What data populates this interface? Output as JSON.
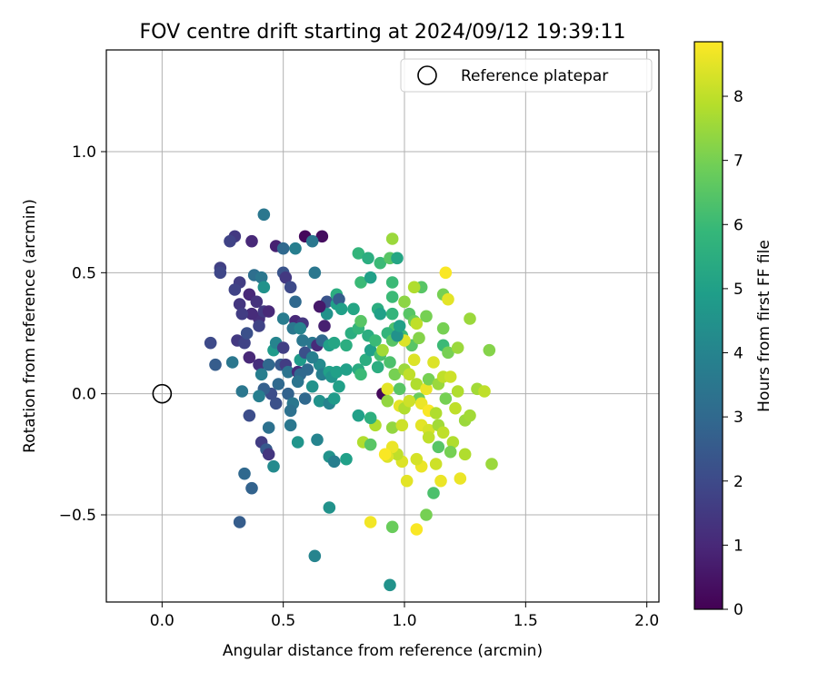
{
  "chart_data": {
    "type": "scatter",
    "title": "FOV centre drift starting at 2024/09/12 19:39:11",
    "xlabel": "Angular distance from reference (arcmin)",
    "ylabel": "Rotation from reference (arcmin)",
    "xlim": [
      -0.23,
      2.05
    ],
    "ylim": [
      -0.86,
      1.42
    ],
    "x_ticks": [
      "0.0",
      "0.5",
      "1.0",
      "1.5",
      "2.0"
    ],
    "x_tick_values": [
      0,
      0.5,
      1,
      1.5,
      2
    ],
    "y_ticks": [
      "−0.5",
      "0.0",
      "0.5",
      "1.0"
    ],
    "y_tick_values": [
      -0.5,
      0,
      0.5,
      1
    ],
    "grid": true,
    "legend": {
      "placement": "top-right",
      "entries": [
        "Reference platepar"
      ]
    },
    "reference_point": {
      "x": 0,
      "y": 0
    },
    "colorbar": {
      "label": "Hours from first FF file",
      "min": 0,
      "max": 8.85,
      "ticks": [
        "0",
        "1",
        "2",
        "3",
        "4",
        "5",
        "6",
        "7",
        "8"
      ],
      "tick_values": [
        0,
        1,
        2,
        3,
        4,
        5,
        6,
        7,
        8
      ],
      "colormap": [
        "#440154",
        "#482878",
        "#3e4989",
        "#31688e",
        "#26828e",
        "#1f9e89",
        "#35b779",
        "#6ece58",
        "#b5de2b",
        "#fde725"
      ]
    },
    "points": [
      {
        "x": 0.42,
        "y": 0.74,
        "h": 3.5
      },
      {
        "x": 0.3,
        "y": 0.65,
        "h": 1.5
      },
      {
        "x": 0.28,
        "y": 0.63,
        "h": 1.8
      },
      {
        "x": 0.37,
        "y": 0.63,
        "h": 1.0
      },
      {
        "x": 0.47,
        "y": 0.61,
        "h": 0.8
      },
      {
        "x": 0.5,
        "y": 0.6,
        "h": 3.0
      },
      {
        "x": 0.55,
        "y": 0.6,
        "h": 3.8
      },
      {
        "x": 0.59,
        "y": 0.65,
        "h": 0.2
      },
      {
        "x": 0.66,
        "y": 0.65,
        "h": 0.3
      },
      {
        "x": 0.62,
        "y": 0.63,
        "h": 3.5
      },
      {
        "x": 0.24,
        "y": 0.52,
        "h": 1.7
      },
      {
        "x": 0.24,
        "y": 0.5,
        "h": 1.9
      },
      {
        "x": 0.38,
        "y": 0.49,
        "h": 3.2
      },
      {
        "x": 0.41,
        "y": 0.48,
        "h": 3.5
      },
      {
        "x": 0.5,
        "y": 0.5,
        "h": 2.3
      },
      {
        "x": 0.51,
        "y": 0.48,
        "h": 1.5
      },
      {
        "x": 0.63,
        "y": 0.5,
        "h": 3.5
      },
      {
        "x": 0.32,
        "y": 0.46,
        "h": 1.6
      },
      {
        "x": 0.3,
        "y": 0.43,
        "h": 1.8
      },
      {
        "x": 0.36,
        "y": 0.41,
        "h": 1.0
      },
      {
        "x": 0.42,
        "y": 0.44,
        "h": 4.5
      },
      {
        "x": 0.53,
        "y": 0.44,
        "h": 2.0
      },
      {
        "x": 0.55,
        "y": 0.38,
        "h": 3.0
      },
      {
        "x": 0.39,
        "y": 0.38,
        "h": 1.3
      },
      {
        "x": 0.32,
        "y": 0.37,
        "h": 1.4
      },
      {
        "x": 0.4,
        "y": 0.31,
        "h": 1.2
      },
      {
        "x": 0.42,
        "y": 0.34,
        "h": 1.5
      },
      {
        "x": 0.44,
        "y": 0.34,
        "h": 1.0
      },
      {
        "x": 0.37,
        "y": 0.33,
        "h": 1.1
      },
      {
        "x": 0.33,
        "y": 0.33,
        "h": 1.6
      },
      {
        "x": 0.4,
        "y": 0.28,
        "h": 1.8
      },
      {
        "x": 0.5,
        "y": 0.31,
        "h": 3.7
      },
      {
        "x": 0.55,
        "y": 0.3,
        "h": 1.0
      },
      {
        "x": 0.58,
        "y": 0.29,
        "h": 1.4
      },
      {
        "x": 0.54,
        "y": 0.27,
        "h": 3.5
      },
      {
        "x": 0.57,
        "y": 0.27,
        "h": 4.0
      },
      {
        "x": 0.67,
        "y": 0.28,
        "h": 0.8
      },
      {
        "x": 0.68,
        "y": 0.33,
        "h": 4.5
      },
      {
        "x": 0.68,
        "y": 0.38,
        "h": 2.3
      },
      {
        "x": 0.65,
        "y": 0.36,
        "h": 0.6
      },
      {
        "x": 0.72,
        "y": 0.41,
        "h": 5.5
      },
      {
        "x": 0.72,
        "y": 0.37,
        "h": 5.0
      },
      {
        "x": 0.73,
        "y": 0.39,
        "h": 2.6
      },
      {
        "x": 0.74,
        "y": 0.35,
        "h": 5.0
      },
      {
        "x": 0.79,
        "y": 0.35,
        "h": 5.2
      },
      {
        "x": 0.81,
        "y": 0.58,
        "h": 5.8
      },
      {
        "x": 0.85,
        "y": 0.56,
        "h": 5.5
      },
      {
        "x": 0.9,
        "y": 0.54,
        "h": 6.0
      },
      {
        "x": 0.94,
        "y": 0.56,
        "h": 6.5
      },
      {
        "x": 0.97,
        "y": 0.56,
        "h": 5.2
      },
      {
        "x": 0.95,
        "y": 0.64,
        "h": 7.5
      },
      {
        "x": 0.82,
        "y": 0.46,
        "h": 6.0
      },
      {
        "x": 0.86,
        "y": 0.48,
        "h": 5.0
      },
      {
        "x": 0.95,
        "y": 0.46,
        "h": 6.0
      },
      {
        "x": 1.07,
        "y": 0.44,
        "h": 6.5
      },
      {
        "x": 1.04,
        "y": 0.44,
        "h": 7.8
      },
      {
        "x": 1.17,
        "y": 0.5,
        "h": 8.8
      },
      {
        "x": 1.16,
        "y": 0.41,
        "h": 7.0
      },
      {
        "x": 1.18,
        "y": 0.39,
        "h": 8.5
      },
      {
        "x": 0.95,
        "y": 0.4,
        "h": 6.0
      },
      {
        "x": 1.0,
        "y": 0.38,
        "h": 7.3
      },
      {
        "x": 1.02,
        "y": 0.33,
        "h": 6.5
      },
      {
        "x": 0.89,
        "y": 0.35,
        "h": 5.5
      },
      {
        "x": 0.9,
        "y": 0.33,
        "h": 5.0
      },
      {
        "x": 0.95,
        "y": 0.33,
        "h": 5.8
      },
      {
        "x": 1.04,
        "y": 0.3,
        "h": 6.8
      },
      {
        "x": 1.05,
        "y": 0.29,
        "h": 8.0
      },
      {
        "x": 1.09,
        "y": 0.32,
        "h": 7.0
      },
      {
        "x": 1.27,
        "y": 0.31,
        "h": 7.5
      },
      {
        "x": 1.16,
        "y": 0.27,
        "h": 7.0
      },
      {
        "x": 0.96,
        "y": 0.27,
        "h": 6.3
      },
      {
        "x": 0.99,
        "y": 0.24,
        "h": 6.0
      },
      {
        "x": 1.03,
        "y": 0.2,
        "h": 6.5
      },
      {
        "x": 1.06,
        "y": 0.23,
        "h": 7.2
      },
      {
        "x": 1.0,
        "y": 0.22,
        "h": 8.4
      },
      {
        "x": 1.16,
        "y": 0.2,
        "h": 6.0
      },
      {
        "x": 1.18,
        "y": 0.17,
        "h": 7.0
      },
      {
        "x": 1.22,
        "y": 0.19,
        "h": 7.5
      },
      {
        "x": 1.35,
        "y": 0.18,
        "h": 7.2
      },
      {
        "x": 0.2,
        "y": 0.21,
        "h": 2.0
      },
      {
        "x": 0.22,
        "y": 0.12,
        "h": 2.6
      },
      {
        "x": 0.29,
        "y": 0.13,
        "h": 3.5
      },
      {
        "x": 0.31,
        "y": 0.22,
        "h": 1.5
      },
      {
        "x": 0.34,
        "y": 0.21,
        "h": 1.8
      },
      {
        "x": 0.35,
        "y": 0.25,
        "h": 2.2
      },
      {
        "x": 0.36,
        "y": 0.15,
        "h": 1.0
      },
      {
        "x": 0.4,
        "y": 0.12,
        "h": 1.2
      },
      {
        "x": 0.41,
        "y": 0.08,
        "h": 3.8
      },
      {
        "x": 0.33,
        "y": 0.01,
        "h": 3.5
      },
      {
        "x": 0.44,
        "y": 0.12,
        "h": 3.0
      },
      {
        "x": 0.46,
        "y": 0.18,
        "h": 4.8
      },
      {
        "x": 0.47,
        "y": 0.21,
        "h": 4.0
      },
      {
        "x": 0.5,
        "y": 0.19,
        "h": 1.7
      },
      {
        "x": 0.49,
        "y": 0.12,
        "h": 2.5
      },
      {
        "x": 0.51,
        "y": 0.12,
        "h": 1.6
      },
      {
        "x": 0.48,
        "y": 0.04,
        "h": 3.0
      },
      {
        "x": 0.52,
        "y": 0.09,
        "h": 3.4
      },
      {
        "x": 0.52,
        "y": 0.0,
        "h": 2.8
      },
      {
        "x": 0.45,
        "y": 0.0,
        "h": 2.1
      },
      {
        "x": 0.42,
        "y": 0.02,
        "h": 2.7
      },
      {
        "x": 0.4,
        "y": -0.01,
        "h": 3.8
      },
      {
        "x": 0.56,
        "y": 0.09,
        "h": 1.1
      },
      {
        "x": 0.57,
        "y": 0.14,
        "h": 4.8
      },
      {
        "x": 0.59,
        "y": 0.17,
        "h": 2.2
      },
      {
        "x": 0.58,
        "y": 0.22,
        "h": 3.5
      },
      {
        "x": 0.62,
        "y": 0.21,
        "h": 3.5
      },
      {
        "x": 0.64,
        "y": 0.2,
        "h": 1.1
      },
      {
        "x": 0.66,
        "y": 0.22,
        "h": 3.0
      },
      {
        "x": 0.69,
        "y": 0.2,
        "h": 5.0
      },
      {
        "x": 0.71,
        "y": 0.21,
        "h": 5.2
      },
      {
        "x": 0.65,
        "y": 0.12,
        "h": 4.2
      },
      {
        "x": 0.66,
        "y": 0.08,
        "h": 3.8
      },
      {
        "x": 0.69,
        "y": 0.09,
        "h": 5.0
      },
      {
        "x": 0.7,
        "y": 0.07,
        "h": 4.6
      },
      {
        "x": 0.72,
        "y": 0.09,
        "h": 5.0
      },
      {
        "x": 0.62,
        "y": 0.03,
        "h": 4.5
      },
      {
        "x": 0.6,
        "y": 0.1,
        "h": 3.0
      },
      {
        "x": 0.62,
        "y": 0.15,
        "h": 3.8
      },
      {
        "x": 0.57,
        "y": 0.08,
        "h": 3.0
      },
      {
        "x": 0.56,
        "y": 0.05,
        "h": 3.4
      },
      {
        "x": 0.59,
        "y": -0.02,
        "h": 3.0
      },
      {
        "x": 0.54,
        "y": -0.04,
        "h": 3.5
      },
      {
        "x": 0.65,
        "y": -0.03,
        "h": 4.5
      },
      {
        "x": 0.69,
        "y": -0.04,
        "h": 4.0
      },
      {
        "x": 0.71,
        "y": -0.02,
        "h": 4.8
      },
      {
        "x": 0.73,
        "y": 0.03,
        "h": 5.0
      },
      {
        "x": 0.76,
        "y": 0.2,
        "h": 5.5
      },
      {
        "x": 0.76,
        "y": 0.1,
        "h": 5.0
      },
      {
        "x": 0.78,
        "y": 0.25,
        "h": 5.5
      },
      {
        "x": 0.81,
        "y": 0.1,
        "h": 5.4
      },
      {
        "x": 0.84,
        "y": 0.14,
        "h": 5.5
      },
      {
        "x": 0.82,
        "y": 0.08,
        "h": 6.0
      },
      {
        "x": 0.81,
        "y": 0.27,
        "h": 5.8
      },
      {
        "x": 0.82,
        "y": 0.3,
        "h": 6.5
      },
      {
        "x": 0.86,
        "y": 0.18,
        "h": 5.0
      },
      {
        "x": 0.85,
        "y": 0.24,
        "h": 5.5
      },
      {
        "x": 0.88,
        "y": 0.22,
        "h": 6.0
      },
      {
        "x": 0.9,
        "y": 0.16,
        "h": 6.2
      },
      {
        "x": 0.89,
        "y": 0.11,
        "h": 5.5
      },
      {
        "x": 0.91,
        "y": 0.18,
        "h": 7.6
      },
      {
        "x": 0.93,
        "y": 0.25,
        "h": 5.8
      },
      {
        "x": 0.94,
        "y": 0.13,
        "h": 6.3
      },
      {
        "x": 0.95,
        "y": 0.22,
        "h": 6.5
      },
      {
        "x": 0.97,
        "y": 0.24,
        "h": 4.5
      },
      {
        "x": 0.98,
        "y": 0.28,
        "h": 5.0
      },
      {
        "x": 0.91,
        "y": 0.0,
        "h": 0.2
      },
      {
        "x": 0.93,
        "y": 0.02,
        "h": 8.5
      },
      {
        "x": 0.93,
        "y": -0.03,
        "h": 7.4
      },
      {
        "x": 0.96,
        "y": 0.08,
        "h": 7.0
      },
      {
        "x": 0.98,
        "y": 0.02,
        "h": 6.5
      },
      {
        "x": 1.0,
        "y": 0.1,
        "h": 7.5
      },
      {
        "x": 1.02,
        "y": 0.08,
        "h": 8.0
      },
      {
        "x": 1.04,
        "y": 0.14,
        "h": 8.4
      },
      {
        "x": 1.05,
        "y": 0.04,
        "h": 7.8
      },
      {
        "x": 1.06,
        "y": -0.02,
        "h": 6.8
      },
      {
        "x": 1.09,
        "y": 0.02,
        "h": 8.6
      },
      {
        "x": 1.1,
        "y": 0.06,
        "h": 7.0
      },
      {
        "x": 1.12,
        "y": 0.13,
        "h": 8.4
      },
      {
        "x": 1.14,
        "y": 0.04,
        "h": 7.5
      },
      {
        "x": 1.16,
        "y": 0.07,
        "h": 8.0
      },
      {
        "x": 1.19,
        "y": 0.07,
        "h": 8.2
      },
      {
        "x": 1.22,
        "y": 0.01,
        "h": 7.8
      },
      {
        "x": 1.17,
        "y": -0.02,
        "h": 7.0
      },
      {
        "x": 1.21,
        "y": -0.06,
        "h": 8.0
      },
      {
        "x": 1.25,
        "y": -0.11,
        "h": 7.5
      },
      {
        "x": 1.27,
        "y": -0.09,
        "h": 7.6
      },
      {
        "x": 1.3,
        "y": 0.02,
        "h": 7.6
      },
      {
        "x": 1.33,
        "y": 0.01,
        "h": 8.0
      },
      {
        "x": 0.98,
        "y": -0.05,
        "h": 8.5
      },
      {
        "x": 1.0,
        "y": -0.06,
        "h": 7.8
      },
      {
        "x": 1.02,
        "y": -0.03,
        "h": 8.2
      },
      {
        "x": 1.07,
        "y": -0.04,
        "h": 8.6
      },
      {
        "x": 1.1,
        "y": -0.07,
        "h": 8.8
      },
      {
        "x": 1.13,
        "y": -0.08,
        "h": 7.8
      },
      {
        "x": 1.07,
        "y": -0.13,
        "h": 8.5
      },
      {
        "x": 1.1,
        "y": -0.15,
        "h": 8.3
      },
      {
        "x": 1.14,
        "y": -0.13,
        "h": 7.6
      },
      {
        "x": 1.16,
        "y": -0.16,
        "h": 8.0
      },
      {
        "x": 1.2,
        "y": -0.2,
        "h": 7.8
      },
      {
        "x": 1.25,
        "y": -0.25,
        "h": 7.8
      },
      {
        "x": 1.36,
        "y": -0.29,
        "h": 7.5
      },
      {
        "x": 1.19,
        "y": -0.24,
        "h": 7.0
      },
      {
        "x": 1.14,
        "y": -0.22,
        "h": 6.5
      },
      {
        "x": 1.13,
        "y": -0.29,
        "h": 8.2
      },
      {
        "x": 1.15,
        "y": -0.36,
        "h": 8.6
      },
      {
        "x": 1.07,
        "y": -0.3,
        "h": 8.6
      },
      {
        "x": 1.05,
        "y": -0.27,
        "h": 8.3
      },
      {
        "x": 0.99,
        "y": -0.28,
        "h": 8.4
      },
      {
        "x": 0.97,
        "y": -0.25,
        "h": 8.0
      },
      {
        "x": 0.95,
        "y": -0.22,
        "h": 8.6
      },
      {
        "x": 0.93,
        "y": -0.26,
        "h": 8.4
      },
      {
        "x": 0.92,
        "y": -0.25,
        "h": 8.8
      },
      {
        "x": 0.88,
        "y": -0.13,
        "h": 7.8
      },
      {
        "x": 0.95,
        "y": -0.14,
        "h": 7.4
      },
      {
        "x": 0.99,
        "y": -0.13,
        "h": 8.2
      },
      {
        "x": 1.1,
        "y": -0.18,
        "h": 8.0
      },
      {
        "x": 1.01,
        "y": -0.36,
        "h": 8.5
      },
      {
        "x": 1.12,
        "y": -0.41,
        "h": 6.3
      },
      {
        "x": 1.23,
        "y": -0.35,
        "h": 8.6
      },
      {
        "x": 0.83,
        "y": -0.2,
        "h": 7.8
      },
      {
        "x": 0.86,
        "y": -0.21,
        "h": 6.5
      },
      {
        "x": 0.81,
        "y": -0.09,
        "h": 5.0
      },
      {
        "x": 0.86,
        "y": -0.1,
        "h": 5.6
      },
      {
        "x": 0.76,
        "y": -0.27,
        "h": 5.0
      },
      {
        "x": 0.69,
        "y": -0.26,
        "h": 4.5
      },
      {
        "x": 0.71,
        "y": -0.28,
        "h": 3.8
      },
      {
        "x": 0.64,
        "y": -0.19,
        "h": 4.0
      },
      {
        "x": 0.56,
        "y": -0.2,
        "h": 4.6
      },
      {
        "x": 0.53,
        "y": -0.13,
        "h": 3.5
      },
      {
        "x": 0.53,
        "y": -0.07,
        "h": 3.3
      },
      {
        "x": 0.47,
        "y": -0.04,
        "h": 2.2
      },
      {
        "x": 0.44,
        "y": -0.14,
        "h": 3.3
      },
      {
        "x": 0.41,
        "y": -0.2,
        "h": 1.6
      },
      {
        "x": 0.43,
        "y": -0.23,
        "h": 2.5
      },
      {
        "x": 0.44,
        "y": -0.25,
        "h": 1.4
      },
      {
        "x": 0.46,
        "y": -0.3,
        "h": 4.2
      },
      {
        "x": 0.36,
        "y": -0.09,
        "h": 2.1
      },
      {
        "x": 0.34,
        "y": -0.33,
        "h": 3.0
      },
      {
        "x": 0.37,
        "y": -0.39,
        "h": 2.8
      },
      {
        "x": 0.32,
        "y": -0.53,
        "h": 2.6
      },
      {
        "x": 0.69,
        "y": -0.47,
        "h": 4.5
      },
      {
        "x": 0.63,
        "y": -0.67,
        "h": 4.0
      },
      {
        "x": 0.86,
        "y": -0.53,
        "h": 8.7
      },
      {
        "x": 0.95,
        "y": -0.55,
        "h": 6.8
      },
      {
        "x": 1.05,
        "y": -0.56,
        "h": 8.8
      },
      {
        "x": 1.09,
        "y": -0.5,
        "h": 7.0
      },
      {
        "x": 0.94,
        "y": -0.79,
        "h": 4.5
      }
    ]
  }
}
